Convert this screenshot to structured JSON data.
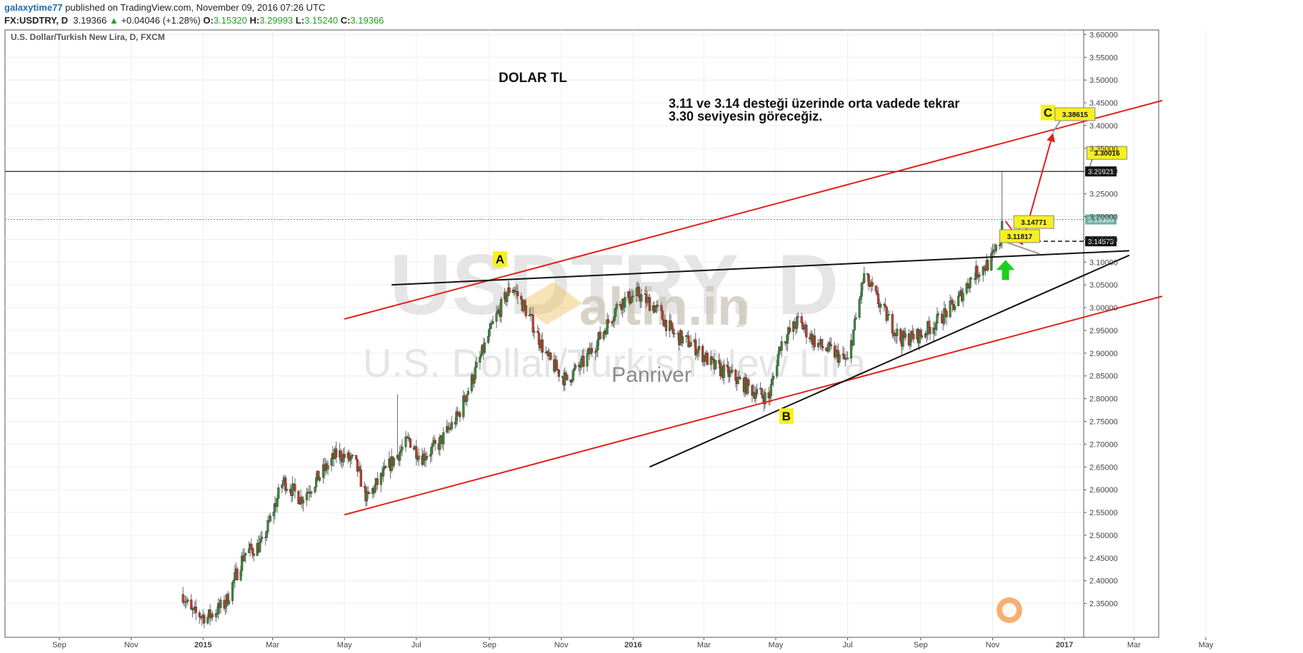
{
  "header": {
    "username": "galaxytime77",
    "published_text": "published on TradingView.com, November 09, 2016 07:26 UTC",
    "symbol": "FX:USDTRY, D",
    "last": "3.19366",
    "change": "+0.04046 (+1.28%)",
    "open_label": "O:",
    "open": "3.15320",
    "high_label": "H:",
    "high": "3.29993",
    "low_label": "L:",
    "low": "3.15240",
    "close_label": "C:",
    "close": "3.19366"
  },
  "colors": {
    "up": "#3a8a3a",
    "down": "#c0392b",
    "trend_red": "#e0201c",
    "trend_black": "#111111",
    "callout_bg": "#f7f01e",
    "grid": "#eeeeee"
  },
  "chart_data": {
    "type": "candlestick",
    "title": "U.S. Dollar/Turkish New Lira, D, FXCM",
    "ylim": [
      2.33,
      3.61
    ],
    "y_ticks": [
      "3.60000",
      "3.55000",
      "3.50000",
      "3.45000",
      "3.40000",
      "3.35000",
      "3.30000",
      "3.25000",
      "3.20000",
      "3.15000",
      "3.10000",
      "3.05000",
      "3.00000",
      "2.95000",
      "2.90000",
      "2.85000",
      "2.80000",
      "2.75000",
      "2.70000",
      "2.65000",
      "2.60000",
      "2.55000",
      "2.50000",
      "2.45000",
      "2.40000",
      "2.35000"
    ],
    "x_ticks": [
      {
        "label": "Sep",
        "date": "2014-09-01"
      },
      {
        "label": "Nov",
        "date": "2014-11-01"
      },
      {
        "label": "2015",
        "date": "2015-01-01"
      },
      {
        "label": "Mar",
        "date": "2015-03-01"
      },
      {
        "label": "May",
        "date": "2015-05-01"
      },
      {
        "label": "Jul",
        "date": "2015-07-01"
      },
      {
        "label": "Sep",
        "date": "2015-09-01"
      },
      {
        "label": "Nov",
        "date": "2015-11-01"
      },
      {
        "label": "2016",
        "date": "2016-01-01"
      },
      {
        "label": "Mar",
        "date": "2016-03-01"
      },
      {
        "label": "May",
        "date": "2016-05-01"
      },
      {
        "label": "Jul",
        "date": "2016-07-01"
      },
      {
        "label": "Sep",
        "date": "2016-09-01"
      },
      {
        "label": "Nov",
        "date": "2016-11-01"
      },
      {
        "label": "2017",
        "date": "2017-01-01"
      },
      {
        "label": "Mar",
        "date": "2017-03-01"
      },
      {
        "label": "May",
        "date": "2017-05-01"
      }
    ],
    "price_path": [
      [
        "2014-12-15",
        2.37
      ],
      [
        "2014-12-22",
        2.33
      ],
      [
        "2015-01-05",
        2.32
      ],
      [
        "2015-01-20",
        2.35
      ],
      [
        "2015-02-05",
        2.46
      ],
      [
        "2015-02-20",
        2.48
      ],
      [
        "2015-03-10",
        2.62
      ],
      [
        "2015-03-25",
        2.58
      ],
      [
        "2015-04-10",
        2.63
      ],
      [
        "2015-04-25",
        2.68
      ],
      [
        "2015-05-10",
        2.66
      ],
      [
        "2015-05-20",
        2.58
      ],
      [
        "2015-06-10",
        2.66
      ],
      [
        "2015-06-25",
        2.71
      ],
      [
        "2015-07-05",
        2.67
      ],
      [
        "2015-07-20",
        2.7
      ],
      [
        "2015-08-05",
        2.76
      ],
      [
        "2015-08-20",
        2.86
      ],
      [
        "2015-09-05",
        2.97
      ],
      [
        "2015-09-20",
        3.05
      ],
      [
        "2015-10-05",
        2.98
      ],
      [
        "2015-10-20",
        2.89
      ],
      [
        "2015-11-05",
        2.84
      ],
      [
        "2015-11-20",
        2.88
      ],
      [
        "2015-12-05",
        2.94
      ],
      [
        "2015-12-20",
        3.01
      ],
      [
        "2016-01-05",
        3.03
      ],
      [
        "2016-01-20",
        3.0
      ],
      [
        "2016-02-05",
        2.94
      ],
      [
        "2016-02-20",
        2.92
      ],
      [
        "2016-03-10",
        2.87
      ],
      [
        "2016-03-25",
        2.85
      ],
      [
        "2016-04-10",
        2.82
      ],
      [
        "2016-04-25",
        2.8
      ],
      [
        "2016-05-05",
        2.92
      ],
      [
        "2016-05-20",
        2.97
      ],
      [
        "2016-06-05",
        2.92
      ],
      [
        "2016-06-20",
        2.9
      ],
      [
        "2016-07-01",
        2.88
      ],
      [
        "2016-07-15",
        3.07
      ],
      [
        "2016-08-01",
        2.99
      ],
      [
        "2016-08-15",
        2.93
      ],
      [
        "2016-09-01",
        2.94
      ],
      [
        "2016-09-15",
        2.97
      ],
      [
        "2016-10-01",
        3.01
      ],
      [
        "2016-10-15",
        3.07
      ],
      [
        "2016-10-30",
        3.1
      ],
      [
        "2016-11-05",
        3.13
      ],
      [
        "2016-11-08",
        3.15
      ],
      [
        "2016-11-09",
        3.19
      ]
    ],
    "spikes": [
      {
        "date": "2015-06-15",
        "high": 2.81
      },
      {
        "date": "2015-11-01",
        "low": 2.76
      },
      {
        "date": "2016-11-09",
        "high": 3.29993
      }
    ],
    "horizontal_lines": [
      {
        "price": 3.29921,
        "style": "solid",
        "label": "3.29921"
      },
      {
        "price": 3.19366,
        "style": "dotted",
        "label": "3.19366"
      },
      {
        "price": 3.14573,
        "style": "dashed",
        "label": "3.14573",
        "start_date": "2016-11-08",
        "end_date": "2017-05-31"
      }
    ],
    "trendlines": [
      {
        "color": "red",
        "from": [
          "2015-05-01",
          2.975
        ],
        "to": [
          "2017-03-25",
          3.455
        ]
      },
      {
        "color": "red",
        "from": [
          "2015-05-01",
          2.545
        ],
        "to": [
          "2017-03-25",
          3.025
        ]
      },
      {
        "color": "black",
        "from": [
          "2015-06-10",
          3.05
        ],
        "to": [
          "2017-02-25",
          3.125
        ]
      },
      {
        "color": "black",
        "from": [
          "2016-01-15",
          2.65
        ],
        "to": [
          "2017-02-25",
          3.115
        ]
      }
    ],
    "arrows": [
      {
        "color": "red",
        "from": [
          "2016-11-12",
          3.19
        ],
        "to": [
          "2016-11-26",
          3.14
        ]
      },
      {
        "color": "red",
        "from": [
          "2016-11-26",
          3.14
        ],
        "to": [
          "2016-12-22",
          3.38
        ]
      }
    ],
    "green_arrow": {
      "date": "2016-11-12",
      "price": 3.07
    },
    "point_labels": [
      {
        "text": "A",
        "date": "2015-09-10",
        "price": 3.105
      },
      {
        "text": "B",
        "date": "2016-05-10",
        "price": 2.76
      },
      {
        "text": "C",
        "date": "2016-12-18",
        "price": 3.427
      }
    ],
    "callouts": [
      {
        "text": "3.38615",
        "date": "2017-01-10",
        "price": 3.425,
        "pointer_date": "2016-12-22",
        "pointer_price": 3.385
      },
      {
        "text": "3.30016",
        "date": "2017-02-06",
        "price": 3.34,
        "pointer_date": "2017-01-21",
        "pointer_price": 3.3
      },
      {
        "text": "3.14771",
        "date": "2016-12-06",
        "price": 3.188,
        "pointer_date": "2016-11-18",
        "pointer_price": 3.148
      },
      {
        "text": "3.11817",
        "date": "2016-11-24",
        "price": 3.157,
        "pointer_date": "2016-12-11",
        "pointer_price": 3.118
      }
    ],
    "annotations": {
      "heading": "DOLAR TL",
      "note_line1": "3.11 ve 3.14 desteği üzerinde orta vadede tekrar",
      "note_line2": "3.30 seviyesin göreceğiz."
    },
    "watermark": {
      "symbol": "USDTRY, D",
      "name": "U.S. Dollar/Turkish New Lira",
      "brand": "altin.in",
      "brand_sub": "Panriver"
    }
  }
}
